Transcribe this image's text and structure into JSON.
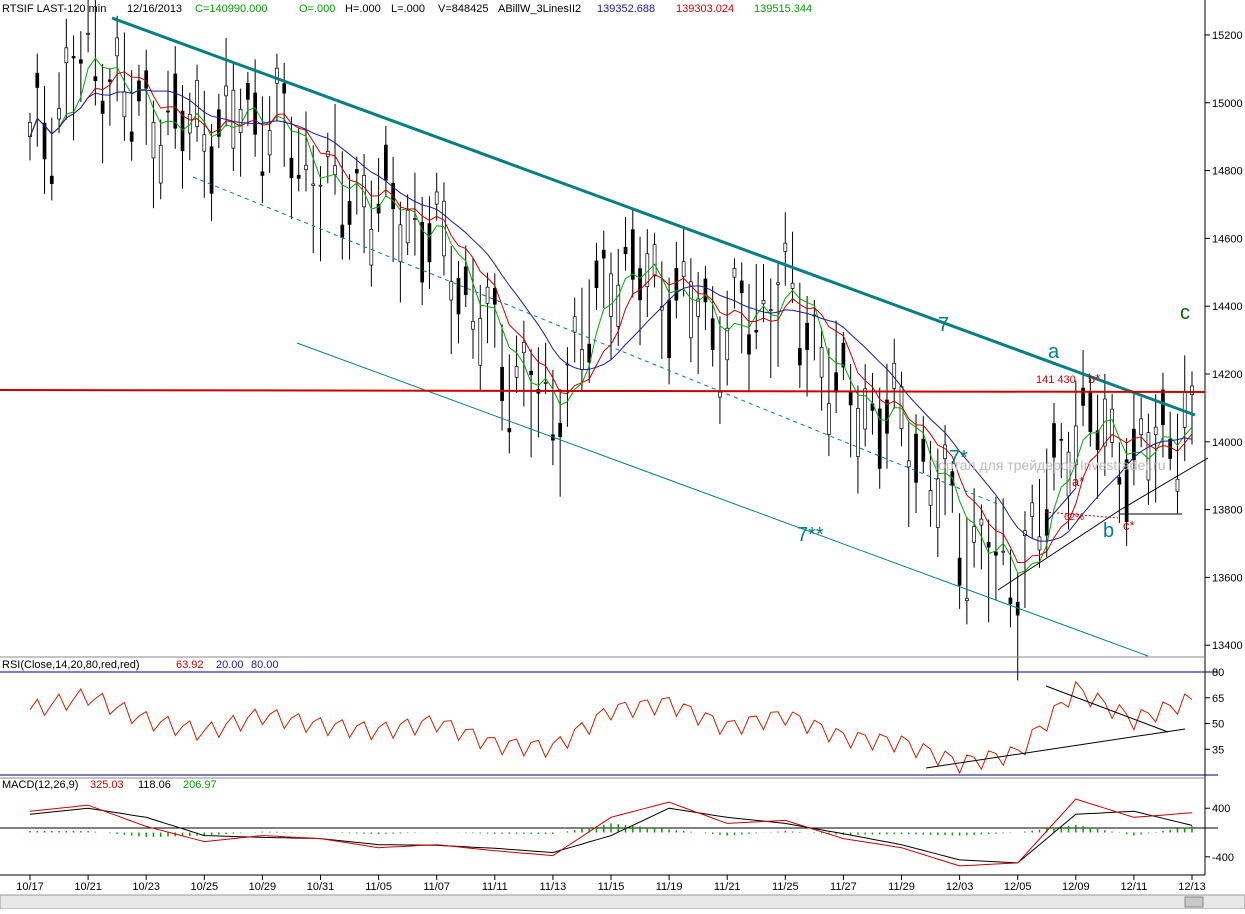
{
  "header": {
    "symbol": "RTSIF LAST-120 min",
    "date": "12/16/2013",
    "close": "C=140990.000",
    "open": "O=.000",
    "high": "H=.000",
    "low": "L=.000",
    "volume": "V=848425",
    "indicator": "ABillW_3LinesII2",
    "ma_blue": "139352.688",
    "ma_red": "139303.024",
    "ma_green": "139515.344"
  },
  "colors": {
    "price": "#000000",
    "ma_blue": "#1a1a9e",
    "ma_red": "#cc0000",
    "ma_green": "#00aa00",
    "trend": "#008080",
    "resistance": "#cc0000",
    "rsi_line": "#cc2200",
    "macd_line": "#000000",
    "signal_line": "#cc0000",
    "histogram": "#00a000",
    "separator": "#000080",
    "label_green": "#006600"
  },
  "watermark": "Портал для трейдеров Investrader.ru",
  "annotations": {
    "a": "a",
    "b": "b",
    "c": "c",
    "seven": "7",
    "seven_star": "7*",
    "seven_dstar": "7**",
    "a_star": "a*",
    "b_star": "b*",
    "c_star": "c*",
    "level_label": "141 430",
    "fib": "62%"
  },
  "rsi_header": {
    "label": "RSI(Close,14,20,80,red,red)",
    "value": "63.92",
    "lower": "20.00",
    "upper": "80.00"
  },
  "macd_header": {
    "label": "MACD(12,26,9)",
    "macd": "325.03",
    "signal": "118.06",
    "hist": "206.97"
  },
  "chart_data": [
    {
      "type": "line",
      "name": "price",
      "x": [
        "10/17",
        "10/21",
        "10/23",
        "10/25",
        "10/29",
        "10/31",
        "11/05",
        "11/07",
        "11/11",
        "11/13",
        "11/15",
        "11/19",
        "11/21",
        "11/25",
        "11/27",
        "11/29",
        "12/03",
        "12/05",
        "12/09",
        "12/11",
        "12/13"
      ],
      "series": [
        {
          "values": [
            148500,
            151500,
            149500,
            149200,
            149800,
            147600,
            147000,
            146000,
            142800,
            140800,
            145200,
            144500,
            143200,
            144600,
            141200,
            140600,
            137400,
            135900,
            140800,
            139400,
            141000
          ]
        }
      ],
      "y_ticks": [
        13400,
        13600,
        13800,
        14000,
        14200,
        14400,
        14600,
        14800,
        15000,
        15200
      ],
      "ylim": [
        133800,
        152500
      ],
      "resistance_level": 141430
    },
    {
      "type": "line",
      "name": "RSI",
      "x": [
        "10/17",
        "10/21",
        "10/23",
        "10/25",
        "10/29",
        "10/31",
        "11/05",
        "11/07",
        "11/11",
        "11/13",
        "11/15",
        "11/19",
        "11/21",
        "11/25",
        "11/27",
        "11/29",
        "12/03",
        "12/05",
        "12/09",
        "12/11",
        "12/13"
      ],
      "series": [
        {
          "values": [
            58,
            66,
            52,
            45,
            55,
            49,
            46,
            51,
            38,
            36,
            58,
            62,
            48,
            55,
            42,
            39,
            27,
            33,
            70,
            52,
            64
          ]
        }
      ],
      "y_ticks": [
        35,
        50,
        65,
        80
      ],
      "ylim": [
        20,
        80
      ]
    },
    {
      "type": "line",
      "name": "MACD",
      "x": [
        "10/17",
        "10/21",
        "10/23",
        "10/25",
        "10/29",
        "10/31",
        "11/05",
        "11/07",
        "11/11",
        "11/13",
        "11/15",
        "11/19",
        "11/21",
        "11/25",
        "11/27",
        "11/29",
        "12/03",
        "12/05",
        "12/09",
        "12/11",
        "12/13"
      ],
      "series": [
        {
          "values": [
            350,
            450,
            100,
            -150,
            -50,
            -100,
            -250,
            -200,
            -300,
            -380,
            250,
            500,
            150,
            200,
            -100,
            -250,
            -550,
            -500,
            550,
            250,
            325
          ]
        },
        {
          "values": [
            300,
            400,
            250,
            -50,
            -80,
            -100,
            -200,
            -210,
            -260,
            -330,
            -50,
            400,
            250,
            150,
            -20,
            -200,
            -450,
            -500,
            300,
            350,
            118
          ]
        }
      ],
      "y_ticks": [
        -400,
        400
      ],
      "ylim": [
        -650,
        700
      ]
    }
  ]
}
